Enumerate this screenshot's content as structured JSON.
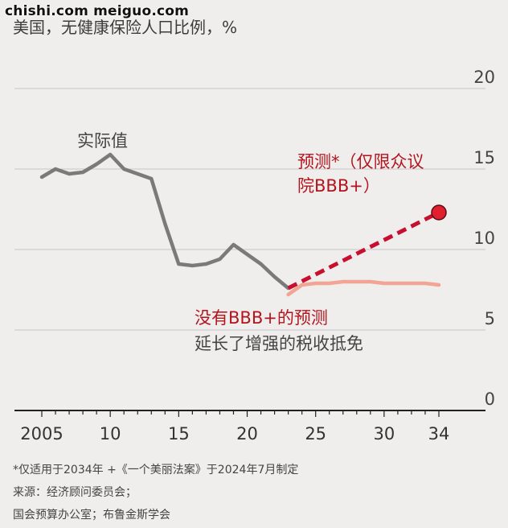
{
  "watermark": "chishi.com meiguo.com",
  "title": "美国，无健康保险人口比例，%",
  "chart_data": {
    "type": "line",
    "title": "美国，无健康保险人口比例，%",
    "xlim": [
      2005,
      2034
    ],
    "ylim": [
      0,
      20
    ],
    "x_ticks": [
      2005,
      2010,
      2015,
      2020,
      2025,
      2030,
      2034
    ],
    "x_tick_labels": [
      "2005",
      "10",
      "15",
      "20",
      "25",
      "30",
      "34"
    ],
    "y_ticks": [
      0,
      5,
      10,
      15,
      20
    ],
    "y_tick_labels": [
      "0",
      "5",
      "10",
      "15",
      "20"
    ],
    "grid": "horizontal",
    "series": [
      {
        "name": "实际值",
        "color": "#7a7a7a",
        "style": "solid",
        "x": [
          2005,
          2006,
          2007,
          2008,
          2009,
          2010,
          2011,
          2012,
          2013,
          2014,
          2015,
          2016,
          2017,
          2018,
          2019,
          2020,
          2021,
          2022,
          2023
        ],
        "y": [
          14.5,
          15.0,
          14.7,
          14.8,
          15.3,
          15.9,
          15.0,
          14.7,
          14.4,
          11.6,
          9.1,
          9.0,
          9.1,
          9.4,
          10.3,
          9.7,
          9.1,
          8.3,
          7.6
        ]
      },
      {
        "name": "预测*（仅限众议院BBB+）",
        "color": "#c8102e",
        "style": "dashed",
        "x": [
          2023,
          2034
        ],
        "y": [
          7.6,
          12.3
        ]
      },
      {
        "name": "没有BBB+的预测",
        "color": "#f2a594",
        "style": "solid",
        "x": [
          2023,
          2024,
          2025,
          2026,
          2027,
          2028,
          2029,
          2030,
          2031,
          2032,
          2033,
          2034
        ],
        "y": [
          7.2,
          7.8,
          7.9,
          7.9,
          8.0,
          8.0,
          8.0,
          7.9,
          7.9,
          7.9,
          7.9,
          7.8
        ]
      }
    ],
    "annotations": {
      "actual": "实际值",
      "forecast_line1": "预测*（仅限众议",
      "forecast_line2": "院BBB+）",
      "no_bbb_line1": "没有BBB+的预测",
      "no_bbb_line2": "延长了增强的税收抵免"
    }
  },
  "footer": {
    "note": "*仅适用于2034年 +《一个美丽法案》于2024年7月制定",
    "source_line1": "来源：经济顾问委员会；",
    "source_line2": "国会预算办公室；布鲁金斯学会"
  }
}
